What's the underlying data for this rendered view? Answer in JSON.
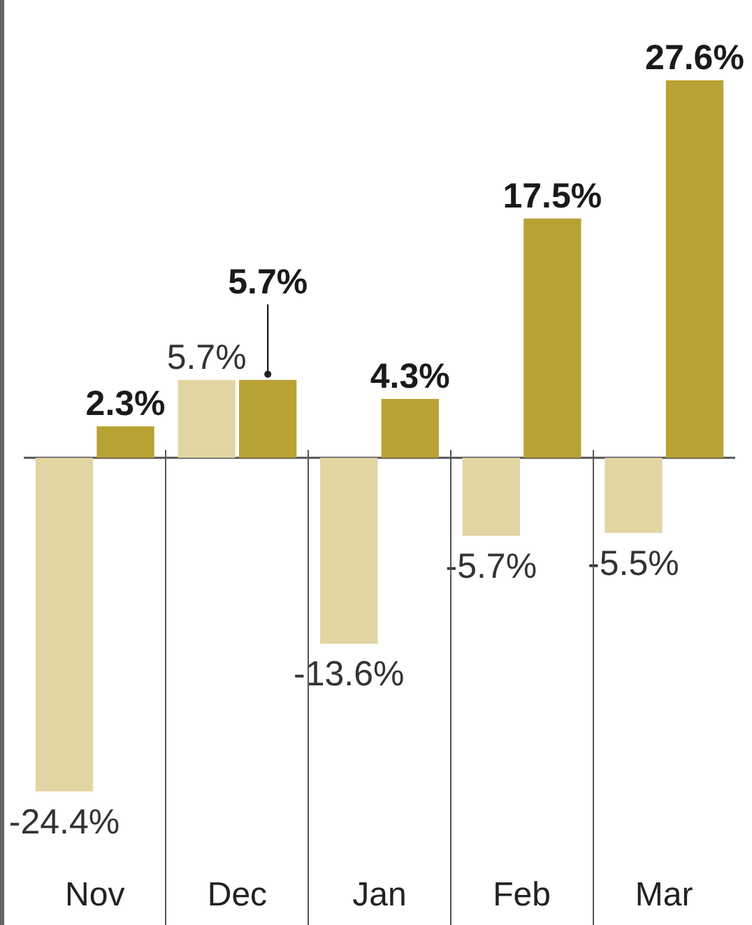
{
  "chart_data": {
    "type": "bar",
    "categories": [
      "Nov",
      "Dec",
      "Jan",
      "Feb",
      "Mar"
    ],
    "series": [
      {
        "color": "#e2d5a4",
        "values": [
          -24.4,
          5.7,
          -13.6,
          -5.7,
          -5.5
        ],
        "value_labels": [
          "-24.4%",
          "5.7%",
          "-13.6%",
          "-5.7%",
          "-5.5%"
        ]
      },
      {
        "color": "#b9a234",
        "values": [
          2.3,
          5.7,
          4.3,
          17.5,
          27.6
        ],
        "value_labels": [
          "2.3%",
          "5.7%",
          "4.3%",
          "17.5%",
          "27.6%"
        ]
      }
    ],
    "grid": false,
    "legend": false,
    "tick_labels": "x"
  }
}
